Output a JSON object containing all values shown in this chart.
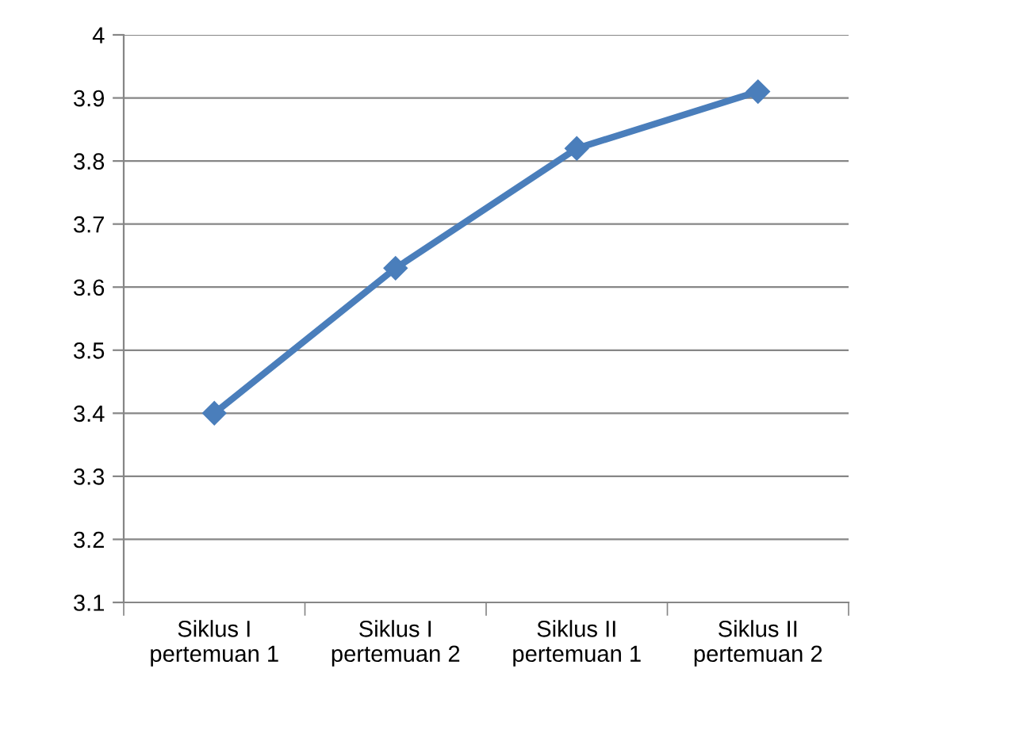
{
  "chart_data": {
    "type": "line",
    "categories": [
      "Siklus I\npertemuan 1",
      "Siklus I\npertemuan 2",
      "Siklus II\npertemuan 1",
      "Siklus II\npertemuan 2"
    ],
    "series": [
      {
        "color": "#4a7ebb",
        "values": [
          3.4,
          3.63,
          3.82,
          3.91
        ]
      }
    ],
    "ylim": [
      3.1,
      4
    ],
    "yticks": [
      3.1,
      3.2,
      3.3,
      3.4,
      3.5,
      3.6,
      3.7,
      3.8,
      3.9,
      4
    ],
    "grid": "y",
    "marker": "diamond",
    "line_style": "solid"
  }
}
